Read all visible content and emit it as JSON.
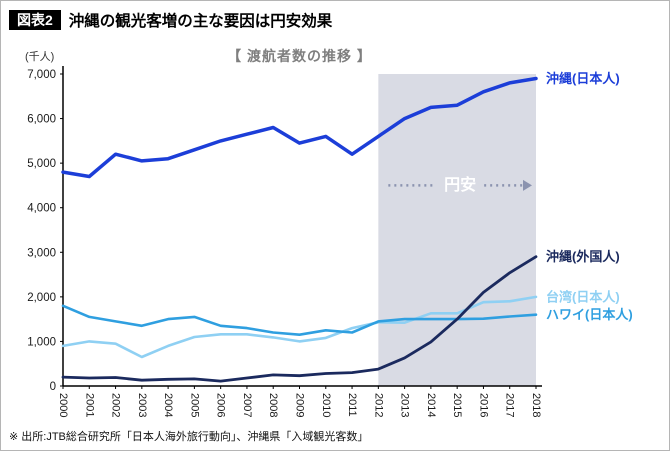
{
  "header": {
    "badge": "図表2",
    "title": "沖縄の観光客増の主な要因は円安効果"
  },
  "chart": {
    "title": "【 渡航者数の推移 】",
    "unit": "(千人)"
  },
  "footer": {
    "source": "※ 出所:JTB総合研究所「日本人海外旅行動向」、沖縄県「入域観光客数」"
  },
  "chart_data": {
    "type": "line",
    "title": "渡航者数の推移",
    "unit_label": "千人",
    "x": [
      2000,
      2001,
      2002,
      2003,
      2004,
      2005,
      2006,
      2007,
      2008,
      2009,
      2010,
      2011,
      2012,
      2013,
      2014,
      2015,
      2016,
      2017,
      2018
    ],
    "ylim": [
      0,
      7000
    ],
    "yticks": [
      0,
      1000,
      2000,
      3000,
      4000,
      5000,
      6000,
      7000
    ],
    "grid": false,
    "legend_position": "right-of-lines",
    "colors": {
      "highlight": "#d9dbe4",
      "annotation": "#8b93af",
      "axis": "#000000",
      "tick_text": "#1a1a1a"
    },
    "highlight_region": {
      "from": 2012,
      "to": 2018
    },
    "annotation": {
      "text": "円安",
      "y": 4500
    },
    "series": [
      {
        "name": "沖縄(日本人)",
        "color": "#1c3ed8",
        "width": 3.5,
        "values": [
          4800,
          4700,
          5200,
          5050,
          5100,
          5300,
          5500,
          5650,
          5800,
          5450,
          5600,
          5200,
          5600,
          6000,
          6250,
          6300,
          6600,
          6800,
          6900
        ]
      },
      {
        "name": "台湾(日本人)",
        "color": "#8fd0f3",
        "width": 2.6,
        "values": [
          900,
          1000,
          950,
          650,
          900,
          1100,
          1160,
          1160,
          1090,
          1000,
          1080,
          1300,
          1430,
          1420,
          1630,
          1630,
          1880,
          1900,
          2000
        ]
      },
      {
        "name": "ハワイ(日本人)",
        "color": "#2f9fe0",
        "width": 2.6,
        "values": [
          1800,
          1550,
          1450,
          1350,
          1500,
          1550,
          1350,
          1300,
          1200,
          1150,
          1250,
          1200,
          1450,
          1500,
          1500,
          1500,
          1510,
          1560,
          1600
        ]
      },
      {
        "name": "沖縄(外国人)",
        "color": "#1b2a5e",
        "width": 2.8,
        "values": [
          200,
          180,
          190,
          130,
          150,
          160,
          110,
          180,
          250,
          230,
          280,
          300,
          380,
          630,
          990,
          1500,
          2100,
          2540,
          2900
        ]
      }
    ]
  }
}
